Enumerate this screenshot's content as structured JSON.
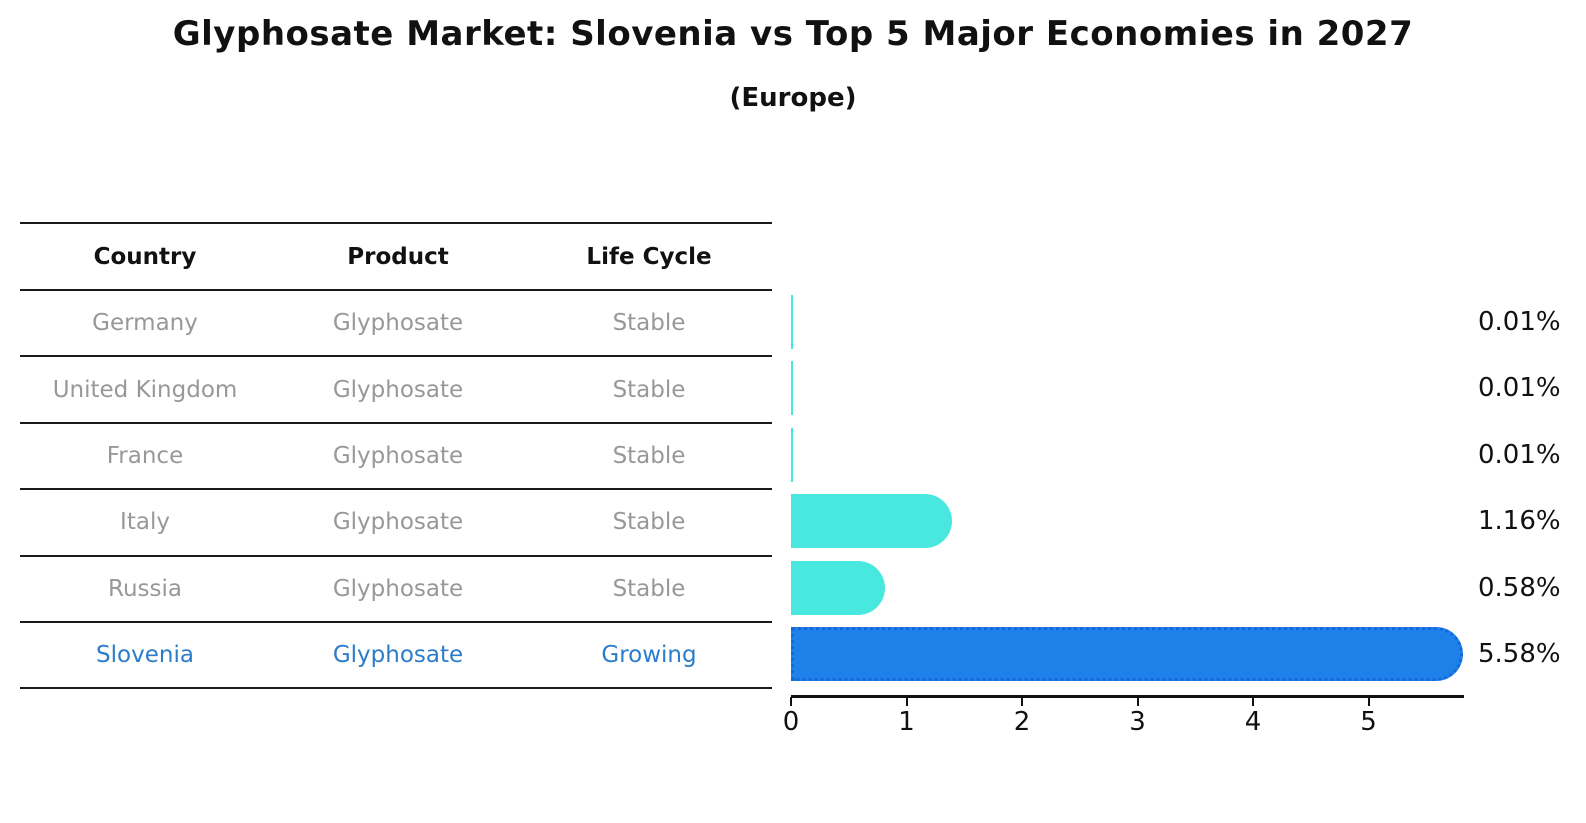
{
  "title": "Glyphosate Market: Slovenia vs Top 5 Major Economies in 2027",
  "subtitle": "(Europe)",
  "table": {
    "headers": [
      "Country",
      "Product",
      "Life Cycle"
    ],
    "rows": [
      {
        "country": "Germany",
        "product": "Glyphosate",
        "life_cycle": "Stable",
        "highlight": false
      },
      {
        "country": "United Kingdom",
        "product": "Glyphosate",
        "life_cycle": "Stable",
        "highlight": false
      },
      {
        "country": "France",
        "product": "Glyphosate",
        "life_cycle": "Stable",
        "highlight": false
      },
      {
        "country": "Italy",
        "product": "Glyphosate",
        "life_cycle": "Stable",
        "highlight": false
      },
      {
        "country": "Russia",
        "product": "Glyphosate",
        "life_cycle": "Stable",
        "highlight": false
      },
      {
        "country": "Slovenia",
        "product": "Glyphosate",
        "life_cycle": "Growing",
        "highlight": true
      }
    ]
  },
  "chart_data": {
    "type": "bar",
    "orientation": "horizontal",
    "title": "Glyphosate Market: Slovenia vs Top 5 Major Economies in 2027 (Europe)",
    "categories": [
      "Germany",
      "United Kingdom",
      "France",
      "Italy",
      "Russia",
      "Slovenia"
    ],
    "values": [
      0.01,
      0.01,
      0.01,
      1.16,
      0.58,
      5.58
    ],
    "value_labels": [
      "0.01%",
      "0.01%",
      "0.01%",
      "1.16%",
      "0.58%",
      "5.58%"
    ],
    "x_ticks": [
      0,
      1,
      2,
      3,
      4,
      5
    ],
    "xlim": [
      0,
      5.81
    ],
    "grid": false,
    "legend": "none",
    "bar_colors": [
      "#49e8de",
      "#49e8de",
      "#49e8de",
      "#49e8de",
      "#49e8de",
      "#1e80e9"
    ],
    "default_color": "#49e8de",
    "highlight_color": "#1e80e9",
    "highlight_index": 5
  },
  "colors": {
    "highlight_text": "#2b7cc9",
    "muted_text": "#989898",
    "heading_text": "#111111",
    "axis_line": "#111111",
    "highlight_border": "#1669d9"
  }
}
